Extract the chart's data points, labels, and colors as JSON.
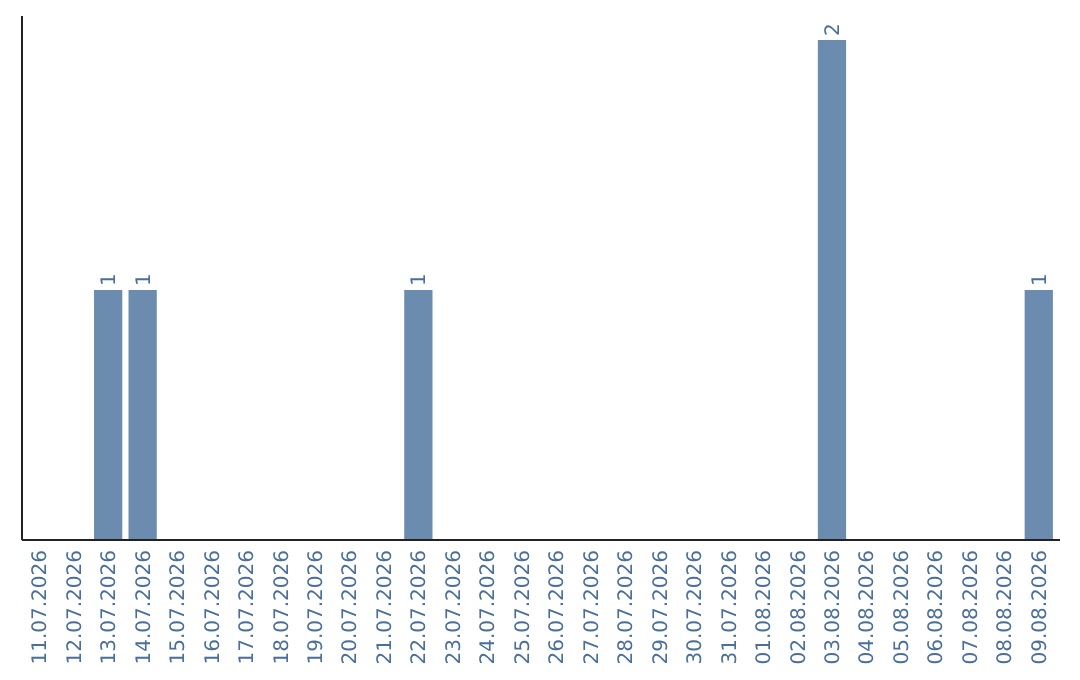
{
  "chart_data": {
    "type": "bar",
    "categories": [
      "11.07.2026",
      "12.07.2026",
      "13.07.2026",
      "14.07.2026",
      "15.07.2026",
      "16.07.2026",
      "17.07.2026",
      "18.07.2026",
      "19.07.2026",
      "20.07.2026",
      "21.07.2026",
      "22.07.2026",
      "23.07.2026",
      "24.07.2026",
      "25.07.2026",
      "26.07.2026",
      "27.07.2026",
      "28.07.2026",
      "29.07.2026",
      "30.07.2026",
      "31.07.2026",
      "01.08.2026",
      "02.08.2026",
      "03.08.2026",
      "04.08.2026",
      "05.08.2026",
      "06.08.2026",
      "07.08.2026",
      "08.08.2026",
      "09.08.2026"
    ],
    "values": [
      0,
      0,
      1,
      1,
      0,
      0,
      0,
      0,
      0,
      0,
      0,
      1,
      0,
      0,
      0,
      0,
      0,
      0,
      0,
      0,
      0,
      0,
      0,
      2,
      0,
      0,
      0,
      0,
      0,
      1
    ],
    "value_labels": [
      null,
      null,
      "1",
      "1",
      null,
      null,
      null,
      null,
      null,
      null,
      null,
      "1",
      null,
      null,
      null,
      null,
      null,
      null,
      null,
      null,
      null,
      null,
      null,
      "2",
      null,
      null,
      null,
      null,
      null,
      "1"
    ],
    "color": "#6b8cae",
    "ylim": [
      0,
      2
    ],
    "tick_labels": "x"
  }
}
